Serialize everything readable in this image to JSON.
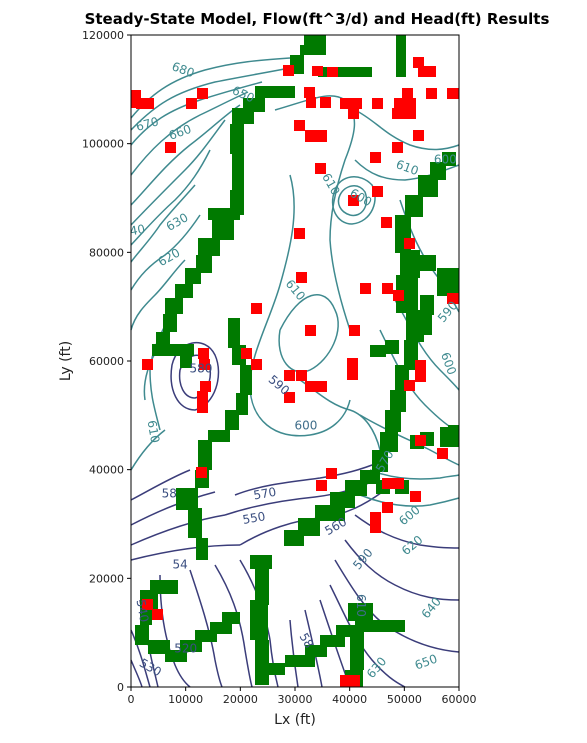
{
  "chart_data": {
    "type": "contour",
    "title": "Steady-State Model, Flow(ft^3/d) and Head(ft) Results",
    "xlabel": "Lx (ft)",
    "ylabel": "Ly (ft)",
    "xlim": [
      0,
      60000
    ],
    "ylim": [
      0,
      120000
    ],
    "xticks": [
      0,
      10000,
      20000,
      30000,
      40000,
      50000,
      60000
    ],
    "yticks": [
      0,
      20000,
      40000,
      60000,
      80000,
      100000,
      120000
    ],
    "xtick_labels": [
      "0",
      "10000",
      "20000",
      "30000",
      "40000",
      "50000",
      "60000"
    ],
    "ytick_labels": [
      "0",
      "20000",
      "40000",
      "60000",
      "80000",
      "100000",
      "120000"
    ],
    "grid": false,
    "colors": {
      "river_cells": "#007a00",
      "well_cells": "#ff0000",
      "contour_low": "#3b3d7a",
      "contour_high": "#3f8a8f"
    },
    "contour_labels": [
      {
        "text": "680",
        "x": 9500,
        "y": 113500,
        "angle": -20,
        "color": "#3f8a8f"
      },
      {
        "text": "650",
        "x": 20500,
        "y": 109000,
        "angle": -25,
        "color": "#3f8a8f"
      },
      {
        "text": "670",
        "x": 3000,
        "y": 103500,
        "angle": 15,
        "color": "#3f8a8f"
      },
      {
        "text": "660",
        "x": 9000,
        "y": 102000,
        "angle": 20,
        "color": "#3f8a8f"
      },
      {
        "text": "610",
        "x": 36500,
        "y": 92500,
        "angle": -60,
        "color": "#3f8a8f"
      },
      {
        "text": "610",
        "x": 50500,
        "y": 95500,
        "angle": -20,
        "color": "#3f8a8f"
      },
      {
        "text": "600",
        "x": 57500,
        "y": 97000,
        "angle": 0,
        "color": "#3f8a8f"
      },
      {
        "text": "600",
        "x": 42000,
        "y": 90000,
        "angle": -30,
        "color": "#3f8a8f"
      },
      {
        "text": "630",
        "x": 8500,
        "y": 85500,
        "angle": 30,
        "color": "#3f8a8f"
      },
      {
        "text": "40",
        "x": 1200,
        "y": 84000,
        "angle": 10,
        "color": "#3f8a8f"
      },
      {
        "text": "620",
        "x": 7000,
        "y": 79000,
        "angle": 30,
        "color": "#3f8a8f"
      },
      {
        "text": "610",
        "x": 30000,
        "y": 73000,
        "angle": -50,
        "color": "#3f8a8f"
      },
      {
        "text": "590",
        "x": 58000,
        "y": 69000,
        "angle": 50,
        "color": "#3f8a8f"
      },
      {
        "text": "600",
        "x": 58000,
        "y": 59500,
        "angle": -70,
        "color": "#3f8a8f"
      },
      {
        "text": "580",
        "x": 12800,
        "y": 58500,
        "angle": 0,
        "color": "#3b4f80"
      },
      {
        "text": "590",
        "x": 27000,
        "y": 55500,
        "angle": -40,
        "color": "#3b4f80"
      },
      {
        "text": "600",
        "x": 32000,
        "y": 48000,
        "angle": 0,
        "color": "#3f6d8a"
      },
      {
        "text": "610",
        "x": 4000,
        "y": 47000,
        "angle": -80,
        "color": "#3f8a8f"
      },
      {
        "text": "570",
        "x": 46500,
        "y": 41500,
        "angle": 60,
        "color": "#3f8a8f"
      },
      {
        "text": "570",
        "x": 24500,
        "y": 35500,
        "angle": 10,
        "color": "#3b4f80"
      },
      {
        "text": "58",
        "x": 7000,
        "y": 35500,
        "angle": 0,
        "color": "#3b4f80"
      },
      {
        "text": "550",
        "x": 22500,
        "y": 31000,
        "angle": 10,
        "color": "#3b4f80"
      },
      {
        "text": "560",
        "x": 37500,
        "y": 29500,
        "angle": 30,
        "color": "#3b4f80"
      },
      {
        "text": "600",
        "x": 51000,
        "y": 31500,
        "angle": 40,
        "color": "#3f8a8f"
      },
      {
        "text": "590",
        "x": 42500,
        "y": 23500,
        "angle": 50,
        "color": "#3f6d8a"
      },
      {
        "text": "620",
        "x": 51500,
        "y": 26000,
        "angle": 40,
        "color": "#3f8a8f"
      },
      {
        "text": "54",
        "x": 9000,
        "y": 22500,
        "angle": 0,
        "color": "#3b4f80"
      },
      {
        "text": "610",
        "x": 42000,
        "y": 15000,
        "angle": -90,
        "color": "#3f6d8a"
      },
      {
        "text": "640",
        "x": 55000,
        "y": 14500,
        "angle": 50,
        "color": "#3f8a8f"
      },
      {
        "text": "58",
        "x": 32000,
        "y": 8500,
        "angle": -60,
        "color": "#3b4f80"
      },
      {
        "text": "520",
        "x": 10000,
        "y": 7000,
        "angle": 0,
        "color": "#3b4f80"
      },
      {
        "text": "630",
        "x": 45000,
        "y": 3500,
        "angle": 50,
        "color": "#3f8a8f"
      },
      {
        "text": "650",
        "x": 54000,
        "y": 4500,
        "angle": 20,
        "color": "#3f8a8f"
      },
      {
        "text": "530",
        "x": 3500,
        "y": 3500,
        "angle": -30,
        "color": "#3b4f80"
      },
      {
        "text": "540",
        "x": 2000,
        "y": 14000,
        "angle": -80,
        "color": "#3b4f80"
      }
    ]
  }
}
